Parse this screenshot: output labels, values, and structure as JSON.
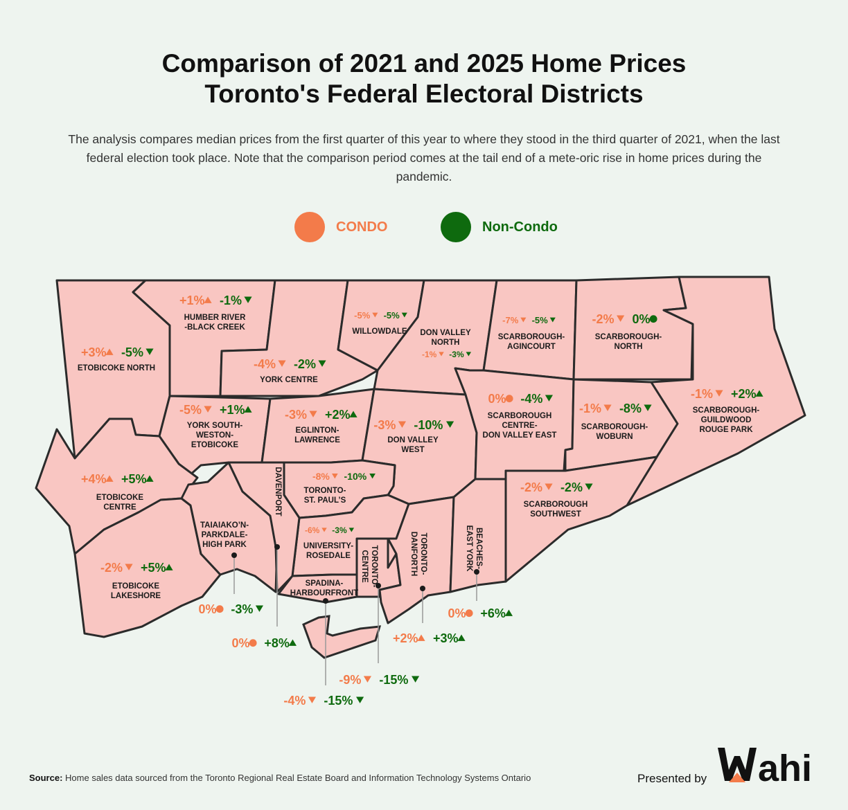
{
  "title_line1": "Comparison of 2021 and 2025 Home Prices",
  "title_line2": "Toronto's Federal Electoral Districts",
  "subtitle": "The analysis compares median prices from the first quarter of this year to where they stood in the third quarter of 2021, when the last federal election took place. Note that the comparison period comes at the tail end of a mete-oric rise in home prices during the pandemic.",
  "legend": {
    "condo_label": "CONDO",
    "noncondo_label": "Non-Condo",
    "condo_color": "#f37b4a",
    "noncondo_color": "#0e6a0e"
  },
  "map_colors": {
    "fill": "#f9c6c2",
    "stroke": "#2b2b2b"
  },
  "districts": [
    {
      "id": "etobicoke-north",
      "name": [
        "ETOBICOKE NORTH"
      ],
      "condo": "+3%",
      "condo_dir": "up",
      "noncondo": "-5%",
      "noncondo_dir": "down"
    },
    {
      "id": "humber-river-black-creek",
      "name": [
        "HUMBER RIVER",
        "-BLACK CREEK"
      ],
      "condo": "+1%",
      "condo_dir": "up",
      "noncondo": "-1%",
      "noncondo_dir": "down"
    },
    {
      "id": "york-centre",
      "name": [
        "YORK CENTRE"
      ],
      "condo": "-4%",
      "condo_dir": "down",
      "noncondo": "-2%",
      "noncondo_dir": "down"
    },
    {
      "id": "willowdale",
      "name": [
        "WILLOWDALE"
      ],
      "condo": "-5%",
      "condo_dir": "down",
      "noncondo": "-5%",
      "noncondo_dir": "down"
    },
    {
      "id": "don-valley-north",
      "name": [
        "DON VALLEY",
        "NORTH"
      ],
      "condo": "-1%",
      "condo_dir": "down",
      "noncondo": "-3%",
      "noncondo_dir": "down"
    },
    {
      "id": "scarborough-agincourt",
      "name": [
        "SCARBOROUGH-",
        "AGINCOURT"
      ],
      "condo": "-7%",
      "condo_dir": "down",
      "noncondo": "-5%",
      "noncondo_dir": "down"
    },
    {
      "id": "scarborough-north",
      "name": [
        "SCARBOROUGH-",
        "NORTH"
      ],
      "condo": "-2%",
      "condo_dir": "down",
      "noncondo": "0%",
      "noncondo_dir": "flat"
    },
    {
      "id": "york-south-weston-etobicoke",
      "name": [
        "YORK SOUTH-",
        "WESTON-",
        "ETOBICOKE"
      ],
      "condo": "-5%",
      "condo_dir": "down",
      "noncondo": "+1%",
      "noncondo_dir": "up"
    },
    {
      "id": "eglinton-lawrence",
      "name": [
        "EGLINTON-",
        "LAWRENCE"
      ],
      "condo": "-3%",
      "condo_dir": "down",
      "noncondo": "+2%",
      "noncondo_dir": "up"
    },
    {
      "id": "don-valley-west",
      "name": [
        "DON VALLEY",
        "WEST"
      ],
      "condo": "-3%",
      "condo_dir": "down",
      "noncondo": "-10%",
      "noncondo_dir": "down"
    },
    {
      "id": "scarborough-centre-don-valley-east",
      "name": [
        "SCARBOROUGH",
        "CENTRE-",
        "DON VALLEY EAST"
      ],
      "condo": "0%",
      "condo_dir": "flat",
      "noncondo": "-4%",
      "noncondo_dir": "down"
    },
    {
      "id": "scarborough-woburn",
      "name": [
        "SCARBOROUGH-",
        "WOBURN"
      ],
      "condo": "-1%",
      "condo_dir": "down",
      "noncondo": "-8%",
      "noncondo_dir": "down"
    },
    {
      "id": "scarborough-guildwood-rouge-park",
      "name": [
        "SCARBOROUGH-",
        "GUILDWOOD",
        "ROUGE PARK"
      ],
      "condo": "-1%",
      "condo_dir": "down",
      "noncondo": "+2%",
      "noncondo_dir": "up"
    },
    {
      "id": "etobicoke-centre",
      "name": [
        "ETOBICOKE",
        "CENTRE"
      ],
      "condo": "+4%",
      "condo_dir": "up",
      "noncondo": "+5%",
      "noncondo_dir": "up"
    },
    {
      "id": "toronto-st-pauls",
      "name": [
        "TORONTO-",
        "ST. PAUL’S"
      ],
      "condo": "-8%",
      "condo_dir": "down",
      "noncondo": "-10%",
      "noncondo_dir": "down"
    },
    {
      "id": "university-rosedale",
      "name": [
        "UNIVERSITY-",
        "ROSEDALE"
      ],
      "condo": "-6%",
      "condo_dir": "down",
      "noncondo": "-3%",
      "noncondo_dir": "down"
    },
    {
      "id": "scarborough-southwest",
      "name": [
        "SCARBOROUGH",
        "SOUTHWEST"
      ],
      "condo": "-2%",
      "condo_dir": "down",
      "noncondo": "-2%",
      "noncondo_dir": "down"
    },
    {
      "id": "etobicoke-lakeshore",
      "name": [
        "ETOBICOKE",
        "LAKESHORE"
      ],
      "condo": "-2%",
      "condo_dir": "down",
      "noncondo": "+5%",
      "noncondo_dir": "up"
    },
    {
      "id": "taiaiakon-parkdale-high-park",
      "name": [
        "TAIAIAKO’N-",
        "PARKDALE-",
        "HIGH PARK"
      ],
      "condo": "0%",
      "condo_dir": "flat",
      "noncondo": "-3%",
      "noncondo_dir": "down"
    },
    {
      "id": "davenport",
      "name": [
        "DAVENPORT"
      ],
      "condo": "0%",
      "condo_dir": "flat",
      "noncondo": "+8%",
      "noncondo_dir": "up"
    },
    {
      "id": "spadina-harbourfront",
      "name": [
        "SPADINA-",
        "HARBOURFRONT"
      ],
      "condo": "-4%",
      "condo_dir": "down",
      "noncondo": "-15%",
      "noncondo_dir": "down"
    },
    {
      "id": "toronto-centre",
      "name": [
        "TORONTO-",
        "CENTRE"
      ],
      "condo": "-9%",
      "condo_dir": "down",
      "noncondo": "-15%",
      "noncondo_dir": "down"
    },
    {
      "id": "toronto-danforth",
      "name": [
        "TORONTO-",
        "DANFORTH"
      ],
      "condo": "+2%",
      "condo_dir": "up",
      "noncondo": "+3%",
      "noncondo_dir": "up"
    },
    {
      "id": "beaches-east-york",
      "name": [
        "BEACHES-",
        "EAST YORK"
      ],
      "condo": "0%",
      "condo_dir": "flat",
      "noncondo": "+6%",
      "noncondo_dir": "up"
    }
  ],
  "footer": {
    "source_label": "Source:",
    "source_text": "Home sales data sourced from the Toronto Regional Real Estate Board and Information Technology Systems Ontario",
    "presented_by": "Presented by",
    "logo_text": "Wahi"
  }
}
